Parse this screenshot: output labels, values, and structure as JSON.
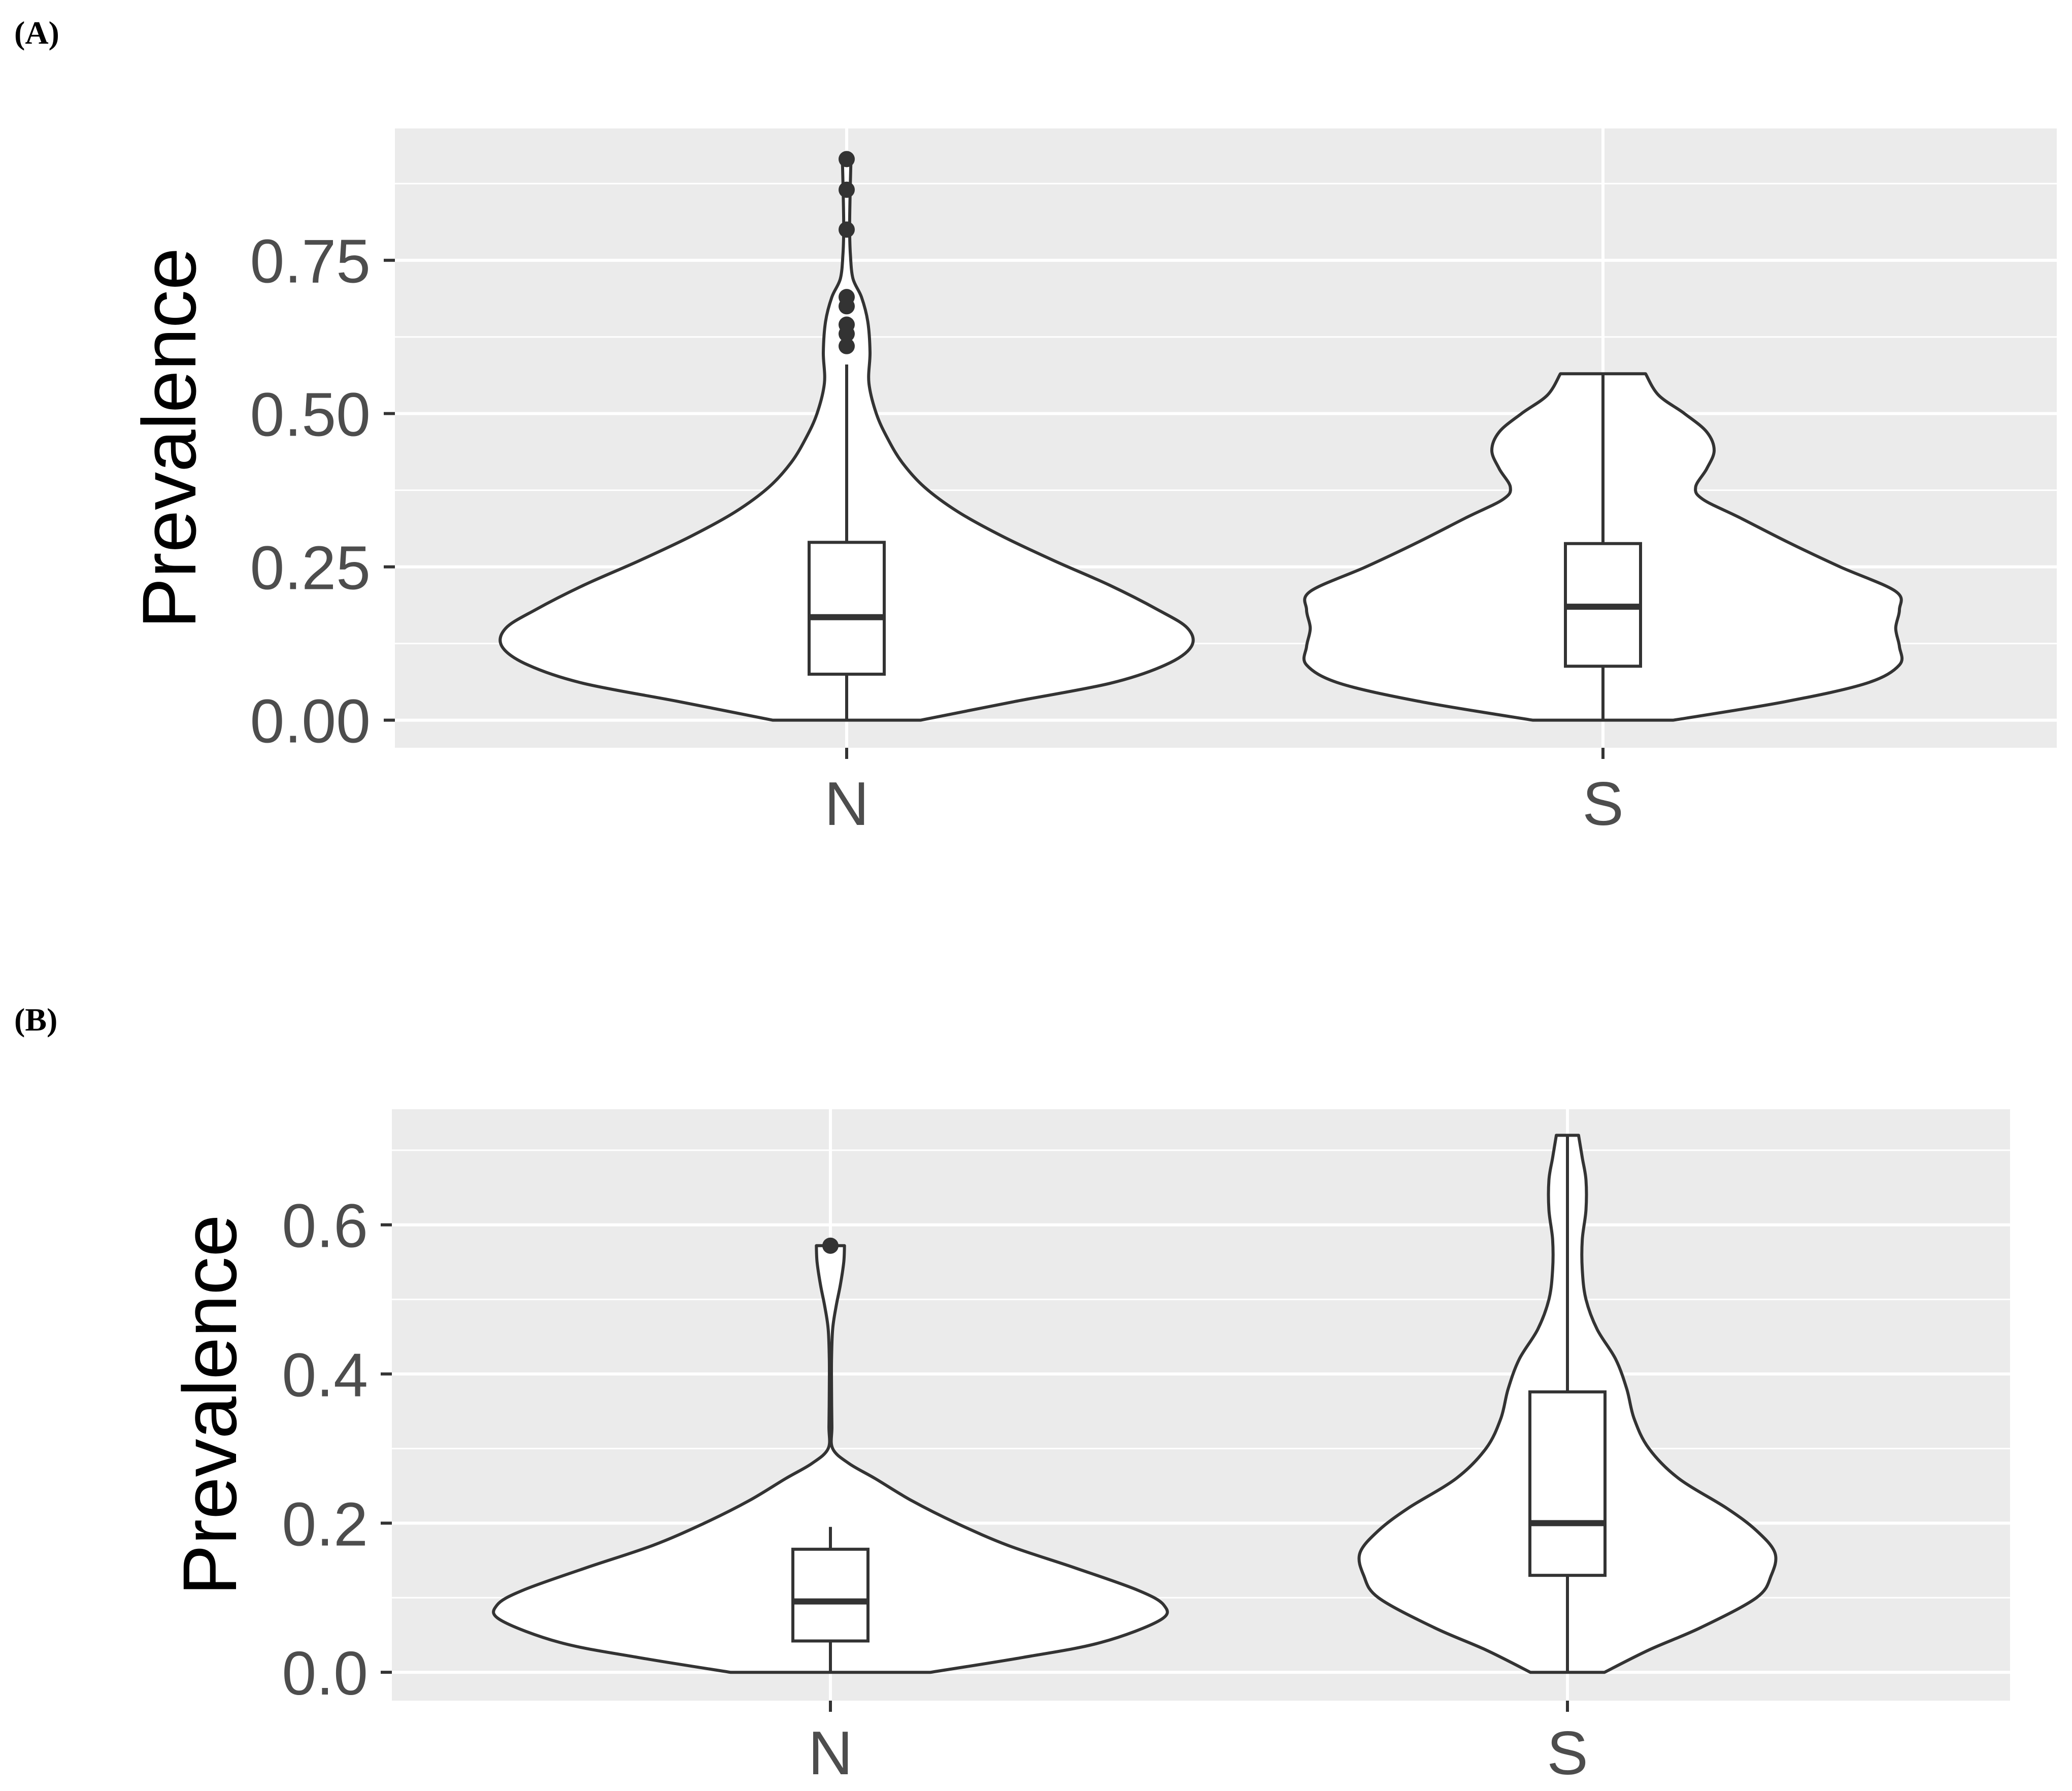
{
  "chart_data": [
    {
      "panel_label": "(A)",
      "type": "violin",
      "ylabel": "Prevalence",
      "xlabel": "",
      "categories": [
        "N",
        "S"
      ],
      "ylim": [
        -0.045,
        0.965
      ],
      "yticks": [
        0,
        0.25,
        0.5,
        0.75
      ],
      "ytick_labels": [
        "0.00",
        "0.25",
        "0.50",
        "0.75"
      ],
      "grid": true,
      "background": "#ebebeb",
      "groups": [
        {
          "name": "N",
          "box": {
            "q1": 0.075,
            "median": 0.168,
            "q3": 0.29,
            "whisker_low": 0.0,
            "whisker_high": 0.58
          },
          "outliers": [
            0.61,
            0.63,
            0.645,
            0.675,
            0.69,
            0.8,
            0.865,
            0.915
          ],
          "density": [
            [
              0.0,
              0.2
            ],
            [
              0.03,
              0.45
            ],
            [
              0.06,
              0.71
            ],
            [
              0.09,
              0.86
            ],
            [
              0.12,
              0.93
            ],
            [
              0.15,
              0.92
            ],
            [
              0.18,
              0.84
            ],
            [
              0.22,
              0.71
            ],
            [
              0.26,
              0.56
            ],
            [
              0.3,
              0.42
            ],
            [
              0.34,
              0.3
            ],
            [
              0.38,
              0.21
            ],
            [
              0.42,
              0.15
            ],
            [
              0.46,
              0.11
            ],
            [
              0.5,
              0.08
            ],
            [
              0.55,
              0.06
            ],
            [
              0.6,
              0.063
            ],
            [
              0.65,
              0.057
            ],
            [
              0.69,
              0.04
            ],
            [
              0.72,
              0.017
            ],
            [
              0.76,
              0.01
            ],
            [
              0.8,
              0.008
            ],
            [
              0.85,
              0.009
            ],
            [
              0.9,
              0.011
            ],
            [
              0.915,
              0.012
            ]
          ]
        },
        {
          "name": "S",
          "box": {
            "q1": 0.088,
            "median": 0.185,
            "q3": 0.288,
            "whisker_low": 0.0,
            "whisker_high": 0.565
          },
          "outliers": [],
          "density": [
            [
              0.0,
              0.19
            ],
            [
              0.03,
              0.49
            ],
            [
              0.06,
              0.71
            ],
            [
              0.09,
              0.8
            ],
            [
              0.12,
              0.8
            ],
            [
              0.15,
              0.79
            ],
            [
              0.18,
              0.8
            ],
            [
              0.21,
              0.79
            ],
            [
              0.25,
              0.64
            ],
            [
              0.29,
              0.5
            ],
            [
              0.33,
              0.37
            ],
            [
              0.36,
              0.27
            ],
            [
              0.38,
              0.25
            ],
            [
              0.41,
              0.28
            ],
            [
              0.44,
              0.3
            ],
            [
              0.47,
              0.28
            ],
            [
              0.5,
              0.22
            ],
            [
              0.53,
              0.15
            ],
            [
              0.565,
              0.115
            ]
          ]
        }
      ]
    },
    {
      "panel_label": "(B)",
      "type": "violin",
      "ylabel": "Prevalence",
      "xlabel": "",
      "categories": [
        "N",
        "S"
      ],
      "ylim": [
        -0.038,
        0.755
      ],
      "yticks": [
        0,
        0.2,
        0.4,
        0.6
      ],
      "ytick_labels": [
        "0.0",
        "0.2",
        "0.4",
        "0.6"
      ],
      "grid": true,
      "background": "#ebebeb",
      "groups": [
        {
          "name": "N",
          "box": {
            "q1": 0.042,
            "median": 0.095,
            "q3": 0.165,
            "whisker_low": 0.0,
            "whisker_high": 0.195
          },
          "outliers": [
            0.572
          ],
          "density": [
            [
              0.0,
              0.27
            ],
            [
              0.02,
              0.52
            ],
            [
              0.04,
              0.73
            ],
            [
              0.07,
              0.89
            ],
            [
              0.09,
              0.9
            ],
            [
              0.11,
              0.83
            ],
            [
              0.14,
              0.66
            ],
            [
              0.17,
              0.48
            ],
            [
              0.2,
              0.34
            ],
            [
              0.23,
              0.22
            ],
            [
              0.26,
              0.12
            ],
            [
              0.28,
              0.05
            ],
            [
              0.3,
              0.006
            ],
            [
              0.33,
              0.004
            ],
            [
              0.38,
              0.003
            ],
            [
              0.42,
              0.003
            ],
            [
              0.46,
              0.006
            ],
            [
              0.49,
              0.015
            ],
            [
              0.52,
              0.027
            ],
            [
              0.55,
              0.036
            ],
            [
              0.572,
              0.038
            ]
          ]
        },
        {
          "name": "S",
          "box": {
            "q1": 0.13,
            "median": 0.2,
            "q3": 0.376,
            "whisker_low": 0.0,
            "whisker_high": 0.72
          },
          "outliers": [],
          "density": [
            [
              0.0,
              0.1
            ],
            [
              0.03,
              0.22
            ],
            [
              0.06,
              0.36
            ],
            [
              0.1,
              0.51
            ],
            [
              0.13,
              0.55
            ],
            [
              0.16,
              0.56
            ],
            [
              0.19,
              0.51
            ],
            [
              0.22,
              0.43
            ],
            [
              0.26,
              0.3
            ],
            [
              0.3,
              0.22
            ],
            [
              0.34,
              0.18
            ],
            [
              0.38,
              0.16
            ],
            [
              0.42,
              0.13
            ],
            [
              0.46,
              0.08
            ],
            [
              0.5,
              0.05
            ],
            [
              0.54,
              0.04
            ],
            [
              0.58,
              0.04
            ],
            [
              0.62,
              0.05
            ],
            [
              0.66,
              0.05
            ],
            [
              0.69,
              0.04
            ],
            [
              0.72,
              0.03
            ]
          ]
        }
      ]
    }
  ]
}
